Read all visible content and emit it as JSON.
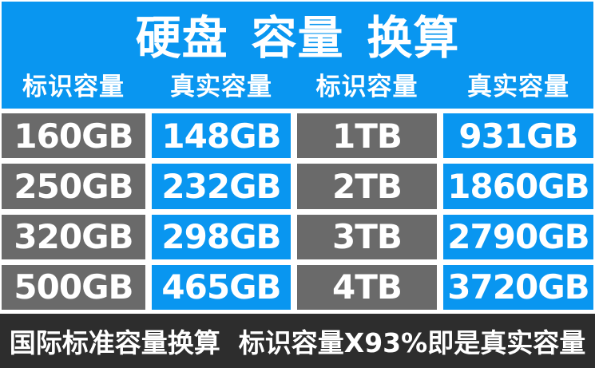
{
  "title": "硬盘 容量 换算",
  "table": {
    "headers": [
      "标识容量",
      "真实容量",
      "标识容量",
      "真实容量"
    ],
    "rows": [
      [
        "160GB",
        "148GB",
        "1TB",
        "931GB"
      ],
      [
        "250GB",
        "232GB",
        "2TB",
        "1860GB"
      ],
      [
        "320GB",
        "298GB",
        "3TB",
        "2790GB"
      ],
      [
        "500GB",
        "465GB",
        "4TB",
        "3720GB"
      ]
    ]
  },
  "footer": {
    "text": "国际标准容量换算  标识容量X93%即是真实容量"
  },
  "colors": {
    "accent_blue": "#0996F0",
    "cell_gray": "#6A6A6A",
    "footer_dark": "#2D2D2D",
    "text_white": "#FFFFFF"
  },
  "chart_data": {
    "type": "table",
    "title": "硬盘 容量 换算",
    "columns": [
      "标识容量",
      "真实容量",
      "标识容量",
      "真实容量"
    ],
    "rows": [
      [
        "160GB",
        "148GB",
        "1TB",
        "931GB"
      ],
      [
        "250GB",
        "232GB",
        "2TB",
        "1860GB"
      ],
      [
        "320GB",
        "298GB",
        "3TB",
        "2790GB"
      ],
      [
        "500GB",
        "465GB",
        "4TB",
        "3720GB"
      ]
    ],
    "pairs": [
      {
        "labeled": "160GB",
        "actual": "148GB"
      },
      {
        "labeled": "250GB",
        "actual": "232GB"
      },
      {
        "labeled": "320GB",
        "actual": "298GB"
      },
      {
        "labeled": "500GB",
        "actual": "465GB"
      },
      {
        "labeled": "1TB",
        "actual": "931GB"
      },
      {
        "labeled": "2TB",
        "actual": "1860GB"
      },
      {
        "labeled": "3TB",
        "actual": "2790GB"
      },
      {
        "labeled": "4TB",
        "actual": "3720GB"
      }
    ],
    "note": "国际标准容量换算 标识容量X93%即是真实容量"
  }
}
